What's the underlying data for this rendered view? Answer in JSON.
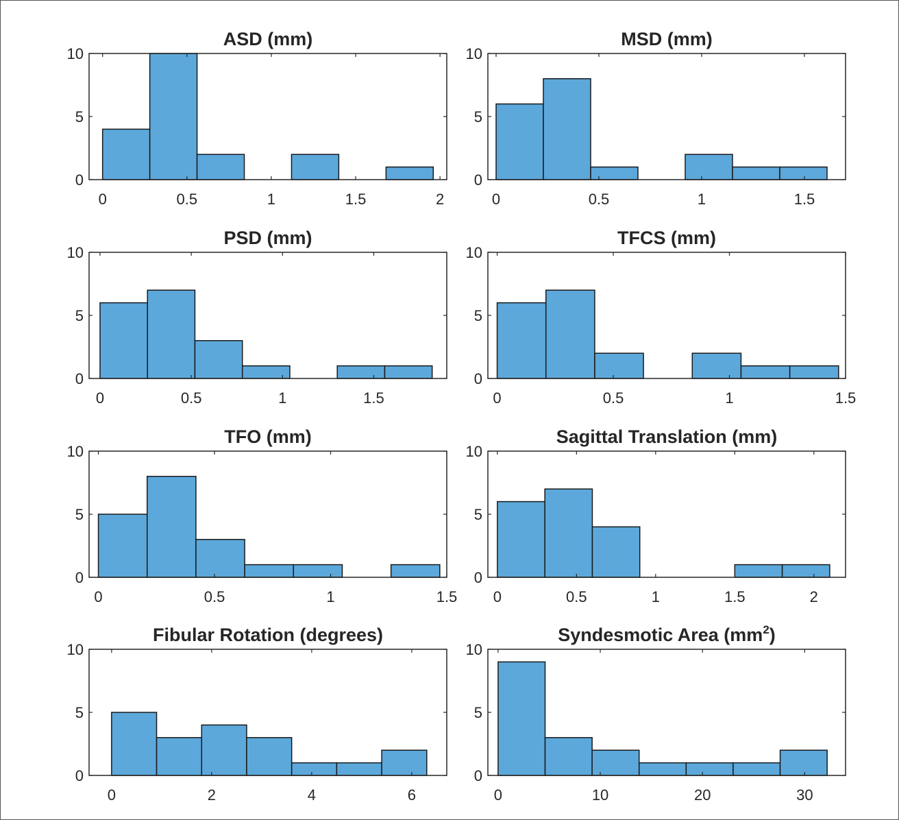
{
  "colors": {
    "bar_fill": "#5ca8db",
    "bar_edge": "#1a1a1a",
    "axis": "#262626",
    "frame": "#555555"
  },
  "chart_data": [
    {
      "type": "bar",
      "title": "ASD (mm)",
      "bin_edges": [
        0,
        0.28,
        0.56,
        0.84,
        1.12,
        1.4,
        1.68,
        1.96
      ],
      "values": [
        4,
        10,
        2,
        0,
        2,
        0,
        1
      ],
      "xlim": [
        -0.08,
        2.04
      ],
      "ylim": [
        0,
        10
      ],
      "xticks": [
        0,
        0.5,
        1,
        1.5,
        2
      ],
      "xtick_labels": [
        "0",
        "0.5",
        "1",
        "1.5",
        "2"
      ],
      "yticks": [
        0,
        5,
        10
      ],
      "ytick_labels": [
        "0",
        "5",
        "10"
      ]
    },
    {
      "type": "bar",
      "title": "MSD (mm)",
      "bin_edges": [
        0,
        0.23,
        0.46,
        0.69,
        0.92,
        1.15,
        1.38,
        1.61
      ],
      "values": [
        6,
        8,
        1,
        0,
        2,
        1,
        1
      ],
      "xlim": [
        -0.04,
        1.7
      ],
      "ylim": [
        0,
        10
      ],
      "xticks": [
        0,
        0.5,
        1,
        1.5
      ],
      "xtick_labels": [
        "0",
        "0.5",
        "1",
        "1.5"
      ],
      "yticks": [
        0,
        5,
        10
      ],
      "ytick_labels": [
        "0",
        "5",
        "10"
      ]
    },
    {
      "type": "bar",
      "title": "PSD (mm)",
      "bin_edges": [
        0,
        0.26,
        0.52,
        0.78,
        1.04,
        1.3,
        1.56,
        1.82
      ],
      "values": [
        6,
        7,
        3,
        1,
        0,
        1,
        1
      ],
      "xlim": [
        -0.06,
        1.9
      ],
      "ylim": [
        0,
        10
      ],
      "xticks": [
        0,
        0.5,
        1,
        1.5
      ],
      "xtick_labels": [
        "0",
        "0.5",
        "1",
        "1.5"
      ],
      "yticks": [
        0,
        5,
        10
      ],
      "ytick_labels": [
        "0",
        "5",
        "10"
      ]
    },
    {
      "type": "bar",
      "title": "TFCS (mm)",
      "bin_edges": [
        0,
        0.21,
        0.42,
        0.63,
        0.84,
        1.05,
        1.26,
        1.47
      ],
      "values": [
        6,
        7,
        2,
        0,
        2,
        1,
        1
      ],
      "xlim": [
        -0.04,
        1.5
      ],
      "ylim": [
        0,
        10
      ],
      "xticks": [
        0,
        0.5,
        1,
        1.5
      ],
      "xtick_labels": [
        "0",
        "0.5",
        "1",
        "1.5"
      ],
      "yticks": [
        0,
        5,
        10
      ],
      "ytick_labels": [
        "0",
        "5",
        "10"
      ]
    },
    {
      "type": "bar",
      "title": "TFO (mm)",
      "bin_edges": [
        0,
        0.21,
        0.42,
        0.63,
        0.84,
        1.05,
        1.26,
        1.47
      ],
      "values": [
        5,
        8,
        3,
        1,
        1,
        0,
        1
      ],
      "xlim": [
        -0.04,
        1.5
      ],
      "ylim": [
        0,
        10
      ],
      "xticks": [
        0,
        0.5,
        1,
        1.5
      ],
      "xtick_labels": [
        "0",
        "0.5",
        "1",
        "1.5"
      ],
      "yticks": [
        0,
        5,
        10
      ],
      "ytick_labels": [
        "0",
        "5",
        "10"
      ]
    },
    {
      "type": "bar",
      "title": "Sagittal Translation (mm)",
      "bin_edges": [
        0,
        0.3,
        0.6,
        0.9,
        1.2,
        1.5,
        1.8,
        2.1
      ],
      "values": [
        6,
        7,
        4,
        0,
        0,
        1,
        1
      ],
      "xlim": [
        -0.06,
        2.2
      ],
      "ylim": [
        0,
        10
      ],
      "xticks": [
        0,
        0.5,
        1,
        1.5,
        2
      ],
      "xtick_labels": [
        "0",
        "0.5",
        "1",
        "1.5",
        "2"
      ],
      "yticks": [
        0,
        5,
        10
      ],
      "ytick_labels": [
        "0",
        "5",
        "10"
      ]
    },
    {
      "type": "bar",
      "title": "Fibular Rotation (degrees)",
      "bin_edges": [
        0,
        0.9,
        1.8,
        2.7,
        3.6,
        4.5,
        5.4,
        6.3
      ],
      "values": [
        5,
        3,
        4,
        3,
        1,
        1,
        2
      ],
      "xlim": [
        -0.45,
        6.7
      ],
      "ylim": [
        0,
        10
      ],
      "xticks": [
        0,
        2,
        4,
        6
      ],
      "xtick_labels": [
        "0",
        "2",
        "4",
        "6"
      ],
      "yticks": [
        0,
        5,
        10
      ],
      "ytick_labels": [
        "0",
        "5",
        "10"
      ]
    },
    {
      "type": "bar",
      "title": "Syndesmotic Area (mm",
      "title_superscript": "2",
      "title_suffix": ")",
      "bin_edges": [
        0,
        4.6,
        9.2,
        13.8,
        18.4,
        23,
        27.6,
        32.2
      ],
      "values": [
        9,
        3,
        2,
        1,
        1,
        1,
        2
      ],
      "xlim": [
        -1,
        34
      ],
      "ylim": [
        0,
        10
      ],
      "xticks": [
        0,
        10,
        20,
        30
      ],
      "xtick_labels": [
        "0",
        "10",
        "20",
        "30"
      ],
      "yticks": [
        0,
        5,
        10
      ],
      "ytick_labels": [
        "0",
        "5",
        "10"
      ]
    }
  ]
}
